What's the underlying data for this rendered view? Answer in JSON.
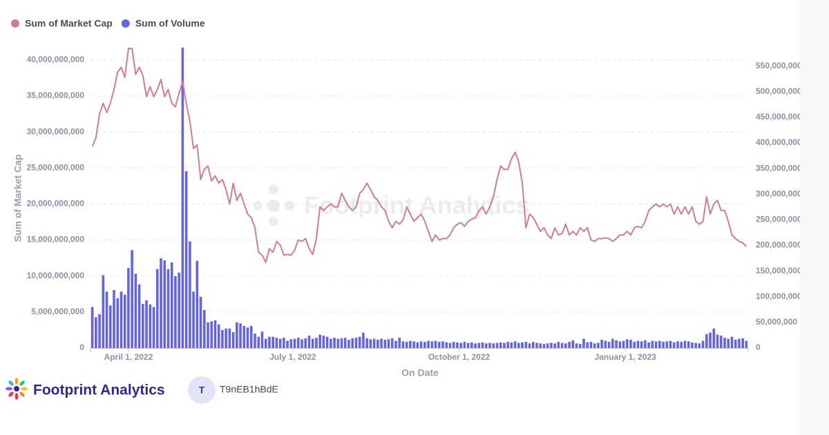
{
  "chart_data": {
    "type": "combo",
    "x_label": "On Date",
    "y_label": "Sum of Market Cap",
    "legend": "top-left",
    "grid": true,
    "x": [
      "2022-03-12",
      "2022-03-14",
      "2022-03-16",
      "2022-03-18",
      "2022-03-20",
      "2022-03-22",
      "2022-03-24",
      "2022-03-26",
      "2022-03-28",
      "2022-03-30",
      "2022-04-01",
      "2022-04-03",
      "2022-04-05",
      "2022-04-07",
      "2022-04-09",
      "2022-04-11",
      "2022-04-13",
      "2022-04-15",
      "2022-04-17",
      "2022-04-19",
      "2022-04-21",
      "2022-04-23",
      "2022-04-25",
      "2022-04-27",
      "2022-04-29",
      "2022-05-01",
      "2022-05-03",
      "2022-05-05",
      "2022-05-07",
      "2022-05-09",
      "2022-05-11",
      "2022-05-13",
      "2022-05-15",
      "2022-05-17",
      "2022-05-19",
      "2022-05-21",
      "2022-05-23",
      "2022-05-25",
      "2022-05-27",
      "2022-05-29",
      "2022-05-31",
      "2022-06-02",
      "2022-06-04",
      "2022-06-06",
      "2022-06-08",
      "2022-06-10",
      "2022-06-12",
      "2022-06-14",
      "2022-06-16",
      "2022-06-18",
      "2022-06-20",
      "2022-06-22",
      "2022-06-24",
      "2022-06-26",
      "2022-06-28",
      "2022-06-30",
      "2022-07-02",
      "2022-07-04",
      "2022-07-06",
      "2022-07-08",
      "2022-07-10",
      "2022-07-12",
      "2022-07-14",
      "2022-07-16",
      "2022-07-18",
      "2022-07-20",
      "2022-07-22",
      "2022-07-24",
      "2022-07-26",
      "2022-07-28",
      "2022-07-30",
      "2022-08-01",
      "2022-08-03",
      "2022-08-05",
      "2022-08-07",
      "2022-08-09",
      "2022-08-11",
      "2022-08-13",
      "2022-08-15",
      "2022-08-17",
      "2022-08-19",
      "2022-08-21",
      "2022-08-23",
      "2022-08-25",
      "2022-08-27",
      "2022-08-29",
      "2022-08-31",
      "2022-09-02",
      "2022-09-04",
      "2022-09-06",
      "2022-09-08",
      "2022-09-10",
      "2022-09-12",
      "2022-09-14",
      "2022-09-16",
      "2022-09-18",
      "2022-09-20",
      "2022-09-22",
      "2022-09-24",
      "2022-09-26",
      "2022-09-28",
      "2022-09-30",
      "2022-10-02",
      "2022-10-04",
      "2022-10-06",
      "2022-10-08",
      "2022-10-10",
      "2022-10-12",
      "2022-10-14",
      "2022-10-16",
      "2022-10-18",
      "2022-10-20",
      "2022-10-22",
      "2022-10-24",
      "2022-10-26",
      "2022-10-28",
      "2022-10-30",
      "2022-11-01",
      "2022-11-03",
      "2022-11-05",
      "2022-11-07",
      "2022-11-09",
      "2022-11-11",
      "2022-11-13",
      "2022-11-15",
      "2022-11-17",
      "2022-11-19",
      "2022-11-21",
      "2022-11-23",
      "2022-11-25",
      "2022-11-27",
      "2022-11-29",
      "2022-12-01",
      "2022-12-03",
      "2022-12-05",
      "2022-12-07",
      "2022-12-09",
      "2022-12-11",
      "2022-12-13",
      "2022-12-15",
      "2022-12-17",
      "2022-12-19",
      "2022-12-21",
      "2022-12-23",
      "2022-12-25",
      "2022-12-27",
      "2022-12-29",
      "2022-12-31",
      "2023-01-02",
      "2023-01-04",
      "2023-01-06",
      "2023-01-08",
      "2023-01-10",
      "2023-01-12",
      "2023-01-14",
      "2023-01-16",
      "2023-01-18",
      "2023-01-20",
      "2023-01-22",
      "2023-01-24",
      "2023-01-26",
      "2023-01-28",
      "2023-01-30",
      "2023-02-01",
      "2023-02-03",
      "2023-02-05",
      "2023-02-07",
      "2023-02-09",
      "2023-02-11",
      "2023-02-13",
      "2023-02-15",
      "2023-02-17",
      "2023-02-19",
      "2023-02-21",
      "2023-02-23",
      "2023-02-25",
      "2023-02-27",
      "2023-03-01",
      "2023-03-03",
      "2023-03-05",
      "2023-03-07",
      "2023-03-09"
    ],
    "xlim": [
      "2022-03-11",
      "2023-03-10"
    ],
    "xticks": [
      {
        "value": "2022-04-01",
        "label": "April 1, 2022"
      },
      {
        "value": "2022-07-01",
        "label": "July 1, 2022"
      },
      {
        "value": "2022-10-01",
        "label": "October 1, 2022"
      },
      {
        "value": "2023-01-01",
        "label": "January 1, 2023"
      }
    ],
    "ylim": [
      0,
      42000000000
    ],
    "yticks": [
      0,
      {
        "value": 5000000000,
        "label": "5,000,000,000"
      },
      {
        "value": 10000000000,
        "label": "10,000,000,000"
      },
      {
        "value": 15000000000,
        "label": "15,000,000,000"
      },
      {
        "value": 20000000000,
        "label": "20,000,000,000"
      },
      {
        "value": 25000000000,
        "label": "25,000,000,000"
      },
      {
        "value": 30000000000,
        "label": "30,000,000,000"
      },
      {
        "value": 35000000000,
        "label": "35,000,000,000"
      },
      {
        "value": 40000000000,
        "label": "40,000,000,000"
      }
    ],
    "y2lim": [
      0,
      590000000
    ],
    "y2ticks": [
      0,
      {
        "value": 50000000,
        "label": "50,000,000"
      },
      {
        "value": 100000000,
        "label": "100,000,000"
      },
      {
        "value": 150000000,
        "label": "150,000,000"
      },
      {
        "value": 200000000,
        "label": "200,000,000"
      },
      {
        "value": 250000000,
        "label": "250,000,000"
      },
      {
        "value": 300000000,
        "label": "300,000,000"
      },
      {
        "value": 350000000,
        "label": "350,000,000"
      },
      {
        "value": 400000000,
        "label": "400,000,000"
      },
      {
        "value": 450000000,
        "label": "450,000,000"
      },
      {
        "value": 500000000,
        "label": "500,000,000"
      },
      {
        "value": 550000000,
        "label": "550,000,000"
      }
    ],
    "series": [
      {
        "name": "Sum of Market Cap",
        "type": "line",
        "color": "#cf7a9b",
        "values": [
          28000000000,
          29200000000,
          32500000000,
          34000000000,
          32700000000,
          34000000000,
          35900000000,
          38300000000,
          39000000000,
          37600000000,
          41600000000,
          41600000000,
          38000000000,
          39000000000,
          37800000000,
          34900000000,
          36300000000,
          34900000000,
          35900000000,
          37300000000,
          34900000000,
          35900000000,
          34000000000,
          33500000000,
          35400000000,
          37000000000,
          34000000000,
          31500000000,
          27700000000,
          28200000000,
          23400000000,
          24800000000,
          25300000000,
          23200000000,
          23900000000,
          22900000000,
          23400000000,
          22000000000,
          20000000000,
          22900000000,
          20500000000,
          21500000000,
          20000000000,
          18600000000,
          18100000000,
          16700000000,
          13300000000,
          12900000000,
          11900000000,
          13800000000,
          13300000000,
          14800000000,
          14300000000,
          12900000000,
          13000000000,
          12900000000,
          13600000000,
          15000000000,
          14800000000,
          15200000000,
          13800000000,
          13000000000,
          15200000000,
          19600000000,
          19100000000,
          19600000000,
          20000000000,
          19600000000,
          19600000000,
          21500000000,
          20500000000,
          19600000000,
          19100000000,
          19600000000,
          21500000000,
          22000000000,
          22900000000,
          22000000000,
          21000000000,
          20500000000,
          19600000000,
          19100000000,
          17600000000,
          16700000000,
          17600000000,
          17200000000,
          17800000000,
          19600000000,
          18600000000,
          17600000000,
          18100000000,
          18600000000,
          17600000000,
          16200000000,
          14800000000,
          15700000000,
          15000000000,
          15200000000,
          15200000000,
          15700000000,
          16700000000,
          17200000000,
          17400000000,
          16900000000,
          17600000000,
          17900000000,
          18100000000,
          19100000000,
          19600000000,
          18600000000,
          19600000000,
          21000000000,
          23400000000,
          25300000000,
          24800000000,
          24800000000,
          26300000000,
          27200000000,
          25800000000,
          22900000000,
          16700000000,
          18600000000,
          18100000000,
          17200000000,
          16200000000,
          16700000000,
          15700000000,
          15200000000,
          16700000000,
          15700000000,
          15900000000,
          17200000000,
          15700000000,
          16200000000,
          15700000000,
          16700000000,
          16200000000,
          16700000000,
          15000000000,
          14800000000,
          15200000000,
          15200000000,
          15300000000,
          15200000000,
          14800000000,
          15200000000,
          15700000000,
          15700000000,
          16200000000,
          15700000000,
          16700000000,
          16900000000,
          16700000000,
          17600000000,
          19100000000,
          19600000000,
          20000000000,
          19600000000,
          20000000000,
          19600000000,
          20000000000,
          18600000000,
          19600000000,
          18600000000,
          19600000000,
          18600000000,
          19600000000,
          17600000000,
          17200000000,
          17600000000,
          21000000000,
          18600000000,
          20000000000,
          20500000000,
          19100000000,
          19100000000,
          17600000000,
          15700000000,
          15200000000,
          14800000000,
          14600000000,
          14100000000
        ]
      },
      {
        "name": "Sum of Volume",
        "type": "bar",
        "axis": "y2",
        "color": "#6464dc",
        "values": [
          80000000,
          60000000,
          66000000,
          142000000,
          110000000,
          83000000,
          113000000,
          97000000,
          110000000,
          104000000,
          156000000,
          191000000,
          145000000,
          124000000,
          86000000,
          93000000,
          85000000,
          80000000,
          154000000,
          175000000,
          171000000,
          154000000,
          167000000,
          140000000,
          147000000,
          586000000,
          345000000,
          208000000,
          110000000,
          170000000,
          100000000,
          74000000,
          50000000,
          52000000,
          54000000,
          46000000,
          35000000,
          38000000,
          38000000,
          31000000,
          50000000,
          48000000,
          43000000,
          40000000,
          43000000,
          28000000,
          22000000,
          32000000,
          18000000,
          22000000,
          22000000,
          20000000,
          18000000,
          20000000,
          14000000,
          17000000,
          18000000,
          20000000,
          17000000,
          19000000,
          24000000,
          18000000,
          20000000,
          26000000,
          24000000,
          22000000,
          18000000,
          20000000,
          18000000,
          19000000,
          20000000,
          16000000,
          19000000,
          20000000,
          22000000,
          30000000,
          19000000,
          17000000,
          18000000,
          16000000,
          18000000,
          16000000,
          17000000,
          19000000,
          14000000,
          20000000,
          13000000,
          12000000,
          14000000,
          13000000,
          11000000,
          13000000,
          12000000,
          14000000,
          13000000,
          14000000,
          12000000,
          13000000,
          11000000,
          10000000,
          12000000,
          11000000,
          10000000,
          12000000,
          10000000,
          11000000,
          9000000,
          10000000,
          11000000,
          9000000,
          10000000,
          9000000,
          10000000,
          11000000,
          10000000,
          12000000,
          11000000,
          13000000,
          10000000,
          11000000,
          12000000,
          9000000,
          12000000,
          10000000,
          9000000,
          8000000,
          9000000,
          10000000,
          9000000,
          12000000,
          10000000,
          9000000,
          12000000,
          15000000,
          9000000,
          8000000,
          18000000,
          11000000,
          12000000,
          9000000,
          10000000,
          16000000,
          14000000,
          12000000,
          18000000,
          15000000,
          13000000,
          14000000,
          17000000,
          16000000,
          12000000,
          14000000,
          13000000,
          15000000,
          11000000,
          14000000,
          13000000,
          14000000,
          12000000,
          13000000,
          14000000,
          11000000,
          13000000,
          12000000,
          14000000,
          13000000,
          11000000,
          10000000,
          9000000,
          14000000,
          27000000,
          30000000,
          38000000,
          26000000,
          24000000,
          20000000,
          18000000,
          22000000,
          16000000,
          18000000,
          19000000,
          14000000
        ]
      }
    ]
  },
  "watermark": "Footprint Analytics",
  "footer": {
    "brand": "Footprint Analytics",
    "avatar": "T",
    "user": "T9nEB1hBdE"
  }
}
